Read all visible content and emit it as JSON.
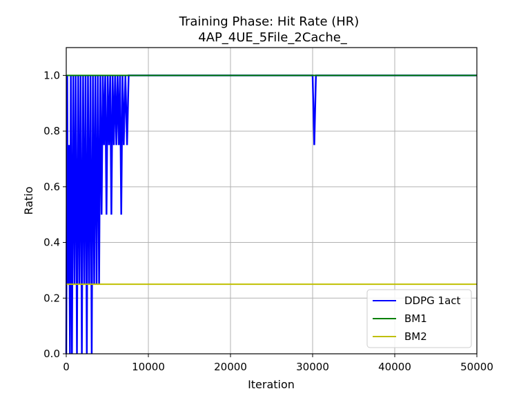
{
  "chart_data": {
    "type": "line",
    "title": "Training Phase: Hit Rate (HR)",
    "subtitle": "4AP_4UE_5File_2Cache_",
    "xlabel": "Iteration",
    "ylabel": "Ratio",
    "xlim": [
      0,
      50000
    ],
    "ylim": [
      0,
      1.1
    ],
    "x_ticks": [
      0,
      10000,
      20000,
      30000,
      40000,
      50000
    ],
    "x_tick_labels": [
      "0",
      "10000",
      "20000",
      "30000",
      "40000",
      "50000"
    ],
    "y_ticks": [
      0.0,
      0.2,
      0.4,
      0.6,
      0.8,
      1.0
    ],
    "y_tick_labels": [
      "0.0",
      "0.2",
      "0.4",
      "0.6",
      "0.8",
      "1.0"
    ],
    "grid": true,
    "legend_position": "bottom-right",
    "series": [
      {
        "name": "DDPG 1act",
        "color": "#0000ff",
        "x": [
          0,
          120,
          200,
          330,
          450,
          560,
          700,
          860,
          1000,
          1150,
          1300,
          1450,
          1600,
          1750,
          1900,
          2050,
          2200,
          2350,
          2500,
          2650,
          2800,
          2950,
          3100,
          3250,
          3400,
          3550,
          3700,
          3850,
          4000,
          4150,
          4300,
          4450,
          4600,
          4750,
          4900,
          5050,
          5200,
          5350,
          5500,
          5650,
          5800,
          5950,
          6100,
          6250,
          6400,
          6550,
          6700,
          6850,
          7000,
          7200,
          7400,
          7600,
          30000,
          30200,
          30400,
          50000
        ],
        "y": [
          0.0,
          1.0,
          0.25,
          0.75,
          0.0,
          1.0,
          0.0,
          1.0,
          0.25,
          1.0,
          0.0,
          1.0,
          0.25,
          1.0,
          0.0,
          1.0,
          0.25,
          1.0,
          0.0,
          1.0,
          0.25,
          1.0,
          0.0,
          1.0,
          0.25,
          1.0,
          0.25,
          1.0,
          0.25,
          1.0,
          0.5,
          1.0,
          0.75,
          1.0,
          0.5,
          1.0,
          0.75,
          1.0,
          0.5,
          1.0,
          0.75,
          1.0,
          0.75,
          1.0,
          0.75,
          1.0,
          0.5,
          1.0,
          0.75,
          1.0,
          0.75,
          1.0,
          1.0,
          0.75,
          1.0,
          1.0
        ]
      },
      {
        "name": "BM1",
        "color": "#008000",
        "x": [
          0,
          50000
        ],
        "y": [
          1.0,
          1.0
        ]
      },
      {
        "name": "BM2",
        "color": "#bfbf00",
        "x": [
          0,
          50000
        ],
        "y": [
          0.25,
          0.25
        ]
      }
    ]
  }
}
